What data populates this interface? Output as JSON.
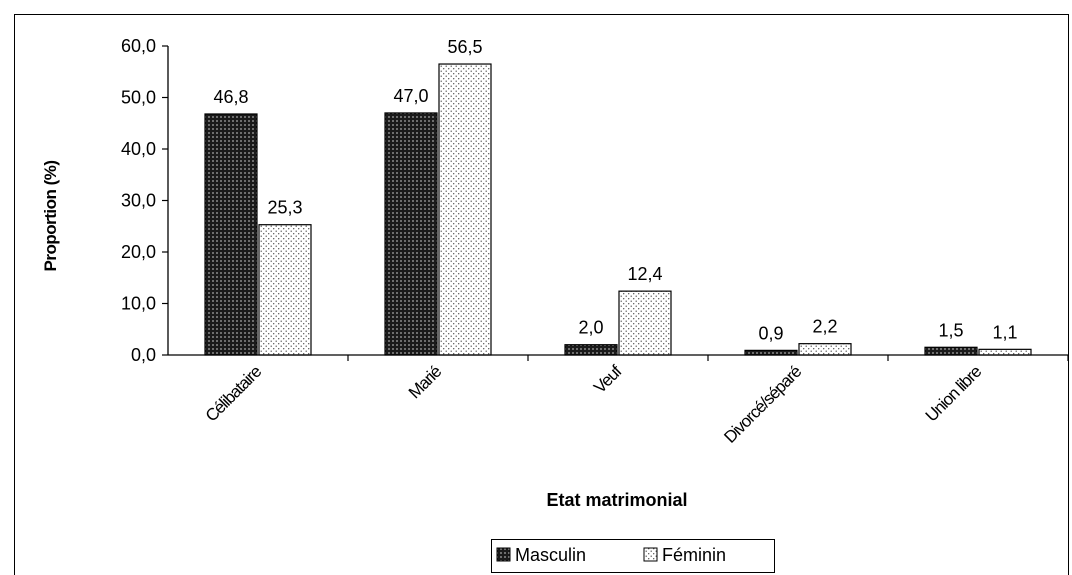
{
  "chart_data": {
    "type": "bar",
    "categories": [
      "Célibataire",
      "Marié",
      "Veuf",
      "Divorcé/séparé",
      "Union libre"
    ],
    "series": [
      {
        "name": "Masculin",
        "values": [
          46.8,
          47.0,
          2.0,
          0.9,
          1.5
        ],
        "labels": [
          "46,8",
          "47,0",
          "2,0",
          "0,9",
          "1,5"
        ]
      },
      {
        "name": "Féminin",
        "values": [
          25.3,
          56.5,
          12.4,
          2.2,
          1.1
        ],
        "labels": [
          "25,3",
          "56,5",
          "12,4",
          "2,2",
          "1,1"
        ]
      }
    ],
    "xlabel": "Etat matrimonial",
    "ylabel": "Proportion (%)",
    "ylim": [
      0,
      60
    ],
    "yticks": [
      0,
      10,
      20,
      30,
      40,
      50,
      60
    ],
    "ytick_labels": [
      "0,0",
      "10,0",
      "20,0",
      "30,0",
      "40,0",
      "50,0",
      "60,0"
    ],
    "grid": false,
    "legend_position": "bottom-center",
    "colors": {
      "Masculin": "#2b2b2b",
      "Féminin": "#f2f2f2"
    }
  }
}
